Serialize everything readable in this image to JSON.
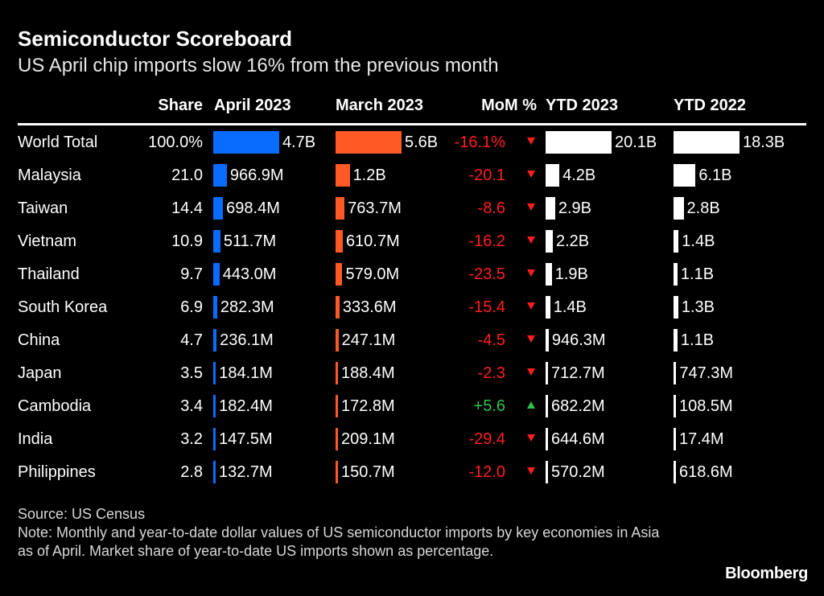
{
  "title": "Semiconductor Scoreboard",
  "subtitle": "US April chip imports slow 16% from the previous month",
  "source": "Source: US Census",
  "note": "Note: Monthly and year-to-date dollar values of US semiconductor imports by key economies in Asia as of April. Market share of year-to-date US imports shown as percentage.",
  "logo": "Bloomberg",
  "colors": {
    "april": "#0a6cff",
    "march": "#ff5a26",
    "ytd": "#ffffff",
    "negative": "#ff1e1e",
    "positive": "#2fc34a"
  },
  "chart_data": {
    "type": "table",
    "columns": [
      "Share",
      "April 2023",
      "March 2023",
      "MoM %",
      "YTD 2023",
      "YTD 2022"
    ],
    "rows": [
      {
        "country": "World Total",
        "share": "100.0%",
        "april": 4700000000.0,
        "april_label": "4.7B",
        "march": 5600000000.0,
        "march_label": "5.6B",
        "mom": "-16.1%",
        "dir": "down",
        "ytd23": 20100000000.0,
        "ytd23_label": "20.1B",
        "ytd22": 18300000000.0,
        "ytd22_label": "18.3B"
      },
      {
        "country": "Malaysia",
        "share": "21.0",
        "april": 966900000.0,
        "april_label": "966.9M",
        "march": 1200000000.0,
        "march_label": "1.2B",
        "mom": "-20.1",
        "dir": "down",
        "ytd23": 4200000000.0,
        "ytd23_label": "4.2B",
        "ytd22": 6100000000.0,
        "ytd22_label": "6.1B"
      },
      {
        "country": "Taiwan",
        "share": "14.4",
        "april": 698400000.0,
        "april_label": "698.4M",
        "march": 763700000.0,
        "march_label": "763.7M",
        "mom": "-8.6",
        "dir": "down",
        "ytd23": 2900000000.0,
        "ytd23_label": "2.9B",
        "ytd22": 2800000000.0,
        "ytd22_label": "2.8B"
      },
      {
        "country": "Vietnam",
        "share": "10.9",
        "april": 511700000.0,
        "april_label": "511.7M",
        "march": 610700000.0,
        "march_label": "610.7M",
        "mom": "-16.2",
        "dir": "down",
        "ytd23": 2200000000.0,
        "ytd23_label": "2.2B",
        "ytd22": 1400000000.0,
        "ytd22_label": "1.4B"
      },
      {
        "country": "Thailand",
        "share": "9.7",
        "april": 443000000.0,
        "april_label": "443.0M",
        "march": 579000000.0,
        "march_label": "579.0M",
        "mom": "-23.5",
        "dir": "down",
        "ytd23": 1900000000.0,
        "ytd23_label": "1.9B",
        "ytd22": 1100000000.0,
        "ytd22_label": "1.1B"
      },
      {
        "country": "South Korea",
        "share": "6.9",
        "april": 282300000.0,
        "april_label": "282.3M",
        "march": 333600000.0,
        "march_label": "333.6M",
        "mom": "-15.4",
        "dir": "down",
        "ytd23": 1400000000.0,
        "ytd23_label": "1.4B",
        "ytd22": 1300000000.0,
        "ytd22_label": "1.3B"
      },
      {
        "country": "China",
        "share": "4.7",
        "april": 236100000.0,
        "april_label": "236.1M",
        "march": 247100000.0,
        "march_label": "247.1M",
        "mom": "-4.5",
        "dir": "down",
        "ytd23": 946300000.0,
        "ytd23_label": "946.3M",
        "ytd22": 1100000000.0,
        "ytd22_label": "1.1B"
      },
      {
        "country": "Japan",
        "share": "3.5",
        "april": 184100000.0,
        "april_label": "184.1M",
        "march": 188400000.0,
        "march_label": "188.4M",
        "mom": "-2.3",
        "dir": "down",
        "ytd23": 712700000.0,
        "ytd23_label": "712.7M",
        "ytd22": 747300000.0,
        "ytd22_label": "747.3M"
      },
      {
        "country": "Cambodia",
        "share": "3.4",
        "april": 182400000.0,
        "april_label": "182.4M",
        "march": 172800000.0,
        "march_label": "172.8M",
        "mom": "+5.6",
        "dir": "up",
        "ytd23": 682200000.0,
        "ytd23_label": "682.2M",
        "ytd22": 108500000.0,
        "ytd22_label": "108.5M"
      },
      {
        "country": "India",
        "share": "3.2",
        "april": 147500000.0,
        "april_label": "147.5M",
        "march": 209100000.0,
        "march_label": "209.1M",
        "mom": "-29.4",
        "dir": "down",
        "ytd23": 644600000.0,
        "ytd23_label": "644.6M",
        "ytd22": 17400000.0,
        "ytd22_label": "17.4M"
      },
      {
        "country": "Philippines",
        "share": "2.8",
        "april": 132700000.0,
        "april_label": "132.7M",
        "march": 150700000.0,
        "march_label": "150.7M",
        "mom": "-12.0",
        "dir": "down",
        "ytd23": 570200000.0,
        "ytd23_label": "570.2M",
        "ytd22": 618600000.0,
        "ytd22_label": "618.6M"
      }
    ]
  }
}
